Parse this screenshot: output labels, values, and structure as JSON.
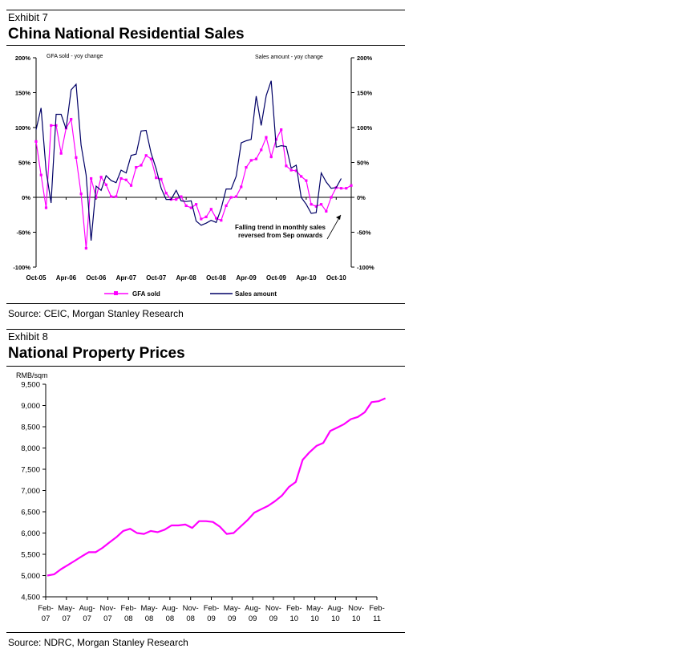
{
  "exhibit7": {
    "label": "Exhibit 7",
    "title": "China National Residential Sales",
    "source": "Source: CEIC, Morgan Stanley Research"
  },
  "exhibit8": {
    "label": "Exhibit 8",
    "title": "National Property Prices",
    "source": "Source: NDRC, Morgan Stanley Research"
  },
  "chart_data": [
    {
      "type": "line",
      "left_axis_title": "GFA sold - yoy change",
      "right_axis_title": "Sales amount - yoy change",
      "annotation": "Falling trend in monthly sales reversed from Sep onwards",
      "x_tick_labels": [
        "Oct-05",
        "Apr-06",
        "Oct-06",
        "Apr-07",
        "Oct-07",
        "Apr-08",
        "Oct-08",
        "Apr-09",
        "Oct-09",
        "Apr-10",
        "Oct-10"
      ],
      "y_tick_labels": [
        "200%",
        "150%",
        "100%",
        "50%",
        "0%",
        "-50%",
        "-100%"
      ],
      "ylim": [
        -100,
        200
      ],
      "x_start": "Oct-05",
      "legend": [
        "GFA sold",
        "Sales amount"
      ],
      "legend_position": "bottom",
      "colors": {
        "GFA sold": "#ff00ff",
        "Sales amount": "#000066"
      },
      "series": [
        {
          "name": "GFA sold",
          "marker": "square",
          "values": [
            80,
            32,
            -15,
            103,
            103,
            63,
            99,
            112,
            57,
            5,
            -73,
            27,
            0,
            29,
            18,
            1,
            1,
            27,
            25,
            17,
            43,
            46,
            60,
            55,
            28,
            26,
            6,
            -3,
            -3,
            1,
            -12,
            -15,
            -10,
            -31,
            -28,
            -17,
            -30,
            -33,
            -12,
            0,
            1,
            15,
            43,
            53,
            55,
            68,
            86,
            58,
            83,
            97,
            45,
            39,
            38,
            30,
            24,
            -10,
            -13,
            -10,
            -20,
            0,
            14,
            13,
            13,
            17
          ]
        },
        {
          "name": "Sales amount",
          "marker": "none",
          "values": [
            97,
            128,
            38,
            -8,
            119,
            119,
            98,
            154,
            162,
            75,
            32,
            -62,
            16,
            10,
            31,
            24,
            21,
            39,
            35,
            60,
            62,
            95,
            96,
            63,
            41,
            13,
            -3,
            -3,
            10,
            -5,
            -6,
            -5,
            -34,
            -40,
            -37,
            -33,
            -36,
            -16,
            12,
            12,
            30,
            78,
            81,
            83,
            145,
            103,
            146,
            167,
            72,
            74,
            73,
            42,
            46,
            0,
            -10,
            -23,
            -22,
            35,
            22,
            13,
            14,
            27
          ]
        }
      ]
    },
    {
      "type": "line",
      "ylabel": "RMB/sqm",
      "ylim": [
        4500,
        9500
      ],
      "y_tick_labels": [
        "9,500",
        "9,000",
        "8,500",
        "8,000",
        "7,500",
        "7,000",
        "6,500",
        "6,000",
        "5,500",
        "5,000",
        "4,500"
      ],
      "x_tick_labels": [
        [
          "Feb-",
          "07"
        ],
        [
          "May-",
          "07"
        ],
        [
          "Aug-",
          "07"
        ],
        [
          "Nov-",
          "07"
        ],
        [
          "Feb-",
          "08"
        ],
        [
          "May-",
          "08"
        ],
        [
          "Aug-",
          "08"
        ],
        [
          "Nov-",
          "08"
        ],
        [
          "Feb-",
          "09"
        ],
        [
          "May-",
          "09"
        ],
        [
          "Aug-",
          "09"
        ],
        [
          "Nov-",
          "09"
        ],
        [
          "Feb-",
          "10"
        ],
        [
          "May-",
          "10"
        ],
        [
          "Aug-",
          "10"
        ],
        [
          "Nov-",
          "10"
        ],
        [
          "Feb-",
          "11"
        ]
      ],
      "x_start": "Feb-07",
      "color": "#ff00ff",
      "series": [
        {
          "name": "",
          "values": [
            5000,
            5030,
            5150,
            5250,
            5350,
            5450,
            5550,
            5550,
            5650,
            5780,
            5900,
            6050,
            6100,
            6000,
            5980,
            6050,
            6020,
            6080,
            6180,
            6180,
            6200,
            6120,
            6280,
            6280,
            6260,
            6150,
            5980,
            6000,
            6150,
            6300,
            6480,
            6560,
            6640,
            6750,
            6880,
            7080,
            7200,
            7720,
            7900,
            8050,
            8120,
            8400,
            8480,
            8560,
            8680,
            8730,
            8840,
            9080,
            9100,
            9170
          ]
        }
      ]
    }
  ]
}
